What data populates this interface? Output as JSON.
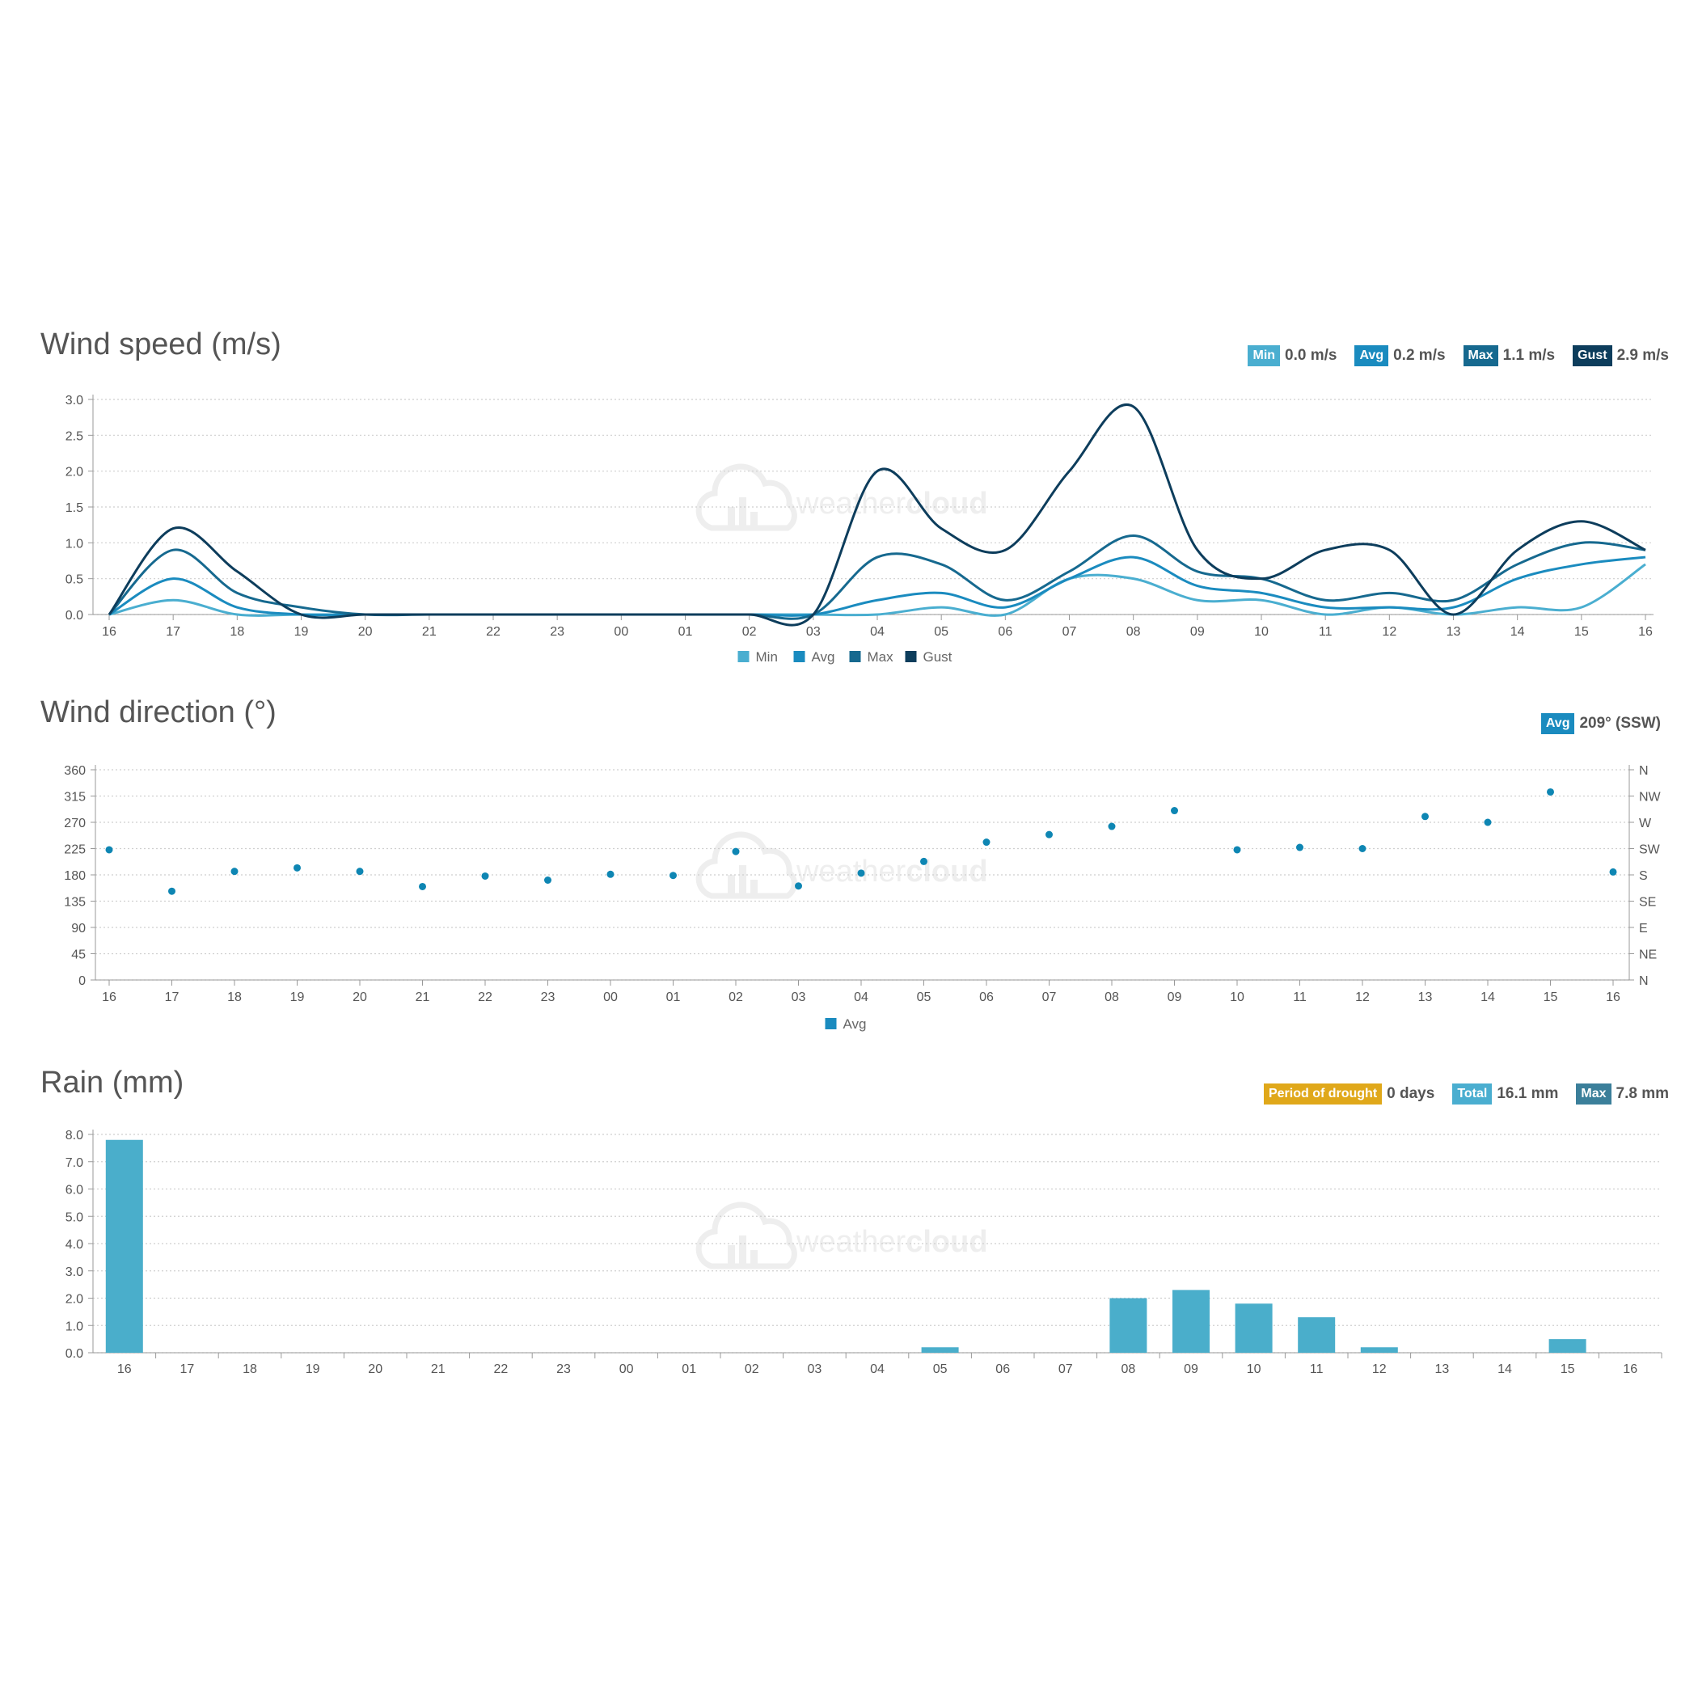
{
  "categories": [
    "16",
    "17",
    "18",
    "19",
    "20",
    "21",
    "22",
    "23",
    "00",
    "01",
    "02",
    "03",
    "04",
    "05",
    "06",
    "07",
    "08",
    "09",
    "10",
    "11",
    "12",
    "13",
    "14",
    "15",
    "16"
  ],
  "watermark": {
    "text_light": "weather",
    "text_bold": "cloud"
  },
  "colors": {
    "min": "#4aaed0",
    "avg": "#1a8bbf",
    "max": "#16698f",
    "gust": "#0d3d5c",
    "drought": "#e0a81a",
    "rain_total": "#4aaed0",
    "rain_max": "#3b7f9a",
    "rain_bar": "#4aaecb",
    "dot": "#0e86b3"
  },
  "wind_speed": {
    "title": "Wind speed (m/s)",
    "stats": [
      {
        "label": "Min",
        "value": "0.0 m/s"
      },
      {
        "label": "Avg",
        "value": "0.2 m/s"
      },
      {
        "label": "Max",
        "value": "1.1 m/s"
      },
      {
        "label": "Gust",
        "value": "2.9 m/s"
      }
    ],
    "legend": [
      "Min",
      "Avg",
      "Max",
      "Gust"
    ]
  },
  "wind_direction": {
    "title": "Wind direction (°)",
    "stats": [
      {
        "label": "Avg",
        "value": "209° (SSW)"
      }
    ],
    "legend": [
      "Avg"
    ]
  },
  "rain": {
    "title": "Rain (mm)",
    "stats": [
      {
        "label": "Period of drought",
        "value": "0 days"
      },
      {
        "label": "Total",
        "value": "16.1 mm"
      },
      {
        "label": "Max",
        "value": "7.8 mm"
      }
    ]
  },
  "chart_data": [
    {
      "type": "line",
      "title": "Wind speed (m/s)",
      "x": [
        "16",
        "17",
        "18",
        "19",
        "20",
        "21",
        "22",
        "23",
        "00",
        "01",
        "02",
        "03",
        "04",
        "05",
        "06",
        "07",
        "08",
        "09",
        "10",
        "11",
        "12",
        "13",
        "14",
        "15",
        "16"
      ],
      "ylim": [
        0,
        3.0
      ],
      "yticks": [
        "0.0",
        "0.5",
        "1.0",
        "1.5",
        "2.0",
        "2.5",
        "3.0"
      ],
      "grid": true,
      "legend_position": "bottom",
      "series": [
        {
          "name": "Min",
          "values": [
            0,
            0.2,
            0,
            0,
            0,
            0,
            0,
            0,
            0,
            0,
            0,
            0,
            0,
            0.1,
            0,
            0.5,
            0.5,
            0.2,
            0.2,
            0,
            0.1,
            0,
            0.1,
            0.1,
            0.7
          ]
        },
        {
          "name": "Avg",
          "values": [
            0,
            0.5,
            0.1,
            0,
            0,
            0,
            0,
            0,
            0,
            0,
            0,
            0,
            0.2,
            0.3,
            0.1,
            0.5,
            0.8,
            0.4,
            0.3,
            0.1,
            0.1,
            0.1,
            0.5,
            0.7,
            0.8
          ]
        },
        {
          "name": "Max",
          "values": [
            0,
            0.9,
            0.3,
            0.1,
            0,
            0,
            0,
            0,
            0,
            0,
            0,
            0,
            0.8,
            0.7,
            0.2,
            0.6,
            1.1,
            0.6,
            0.5,
            0.2,
            0.3,
            0.2,
            0.7,
            1.0,
            0.9
          ]
        },
        {
          "name": "Gust",
          "values": [
            0,
            1.2,
            0.6,
            0,
            0,
            0,
            0,
            0,
            0,
            0,
            0,
            0,
            2.0,
            1.2,
            0.9,
            2.0,
            2.9,
            0.9,
            0.5,
            0.9,
            0.9,
            0,
            0.9,
            1.3,
            0.9
          ]
        }
      ]
    },
    {
      "type": "scatter",
      "title": "Wind direction (°)",
      "x": [
        "16",
        "17",
        "18",
        "19",
        "20",
        "21",
        "22",
        "23",
        "00",
        "01",
        "02",
        "03",
        "04",
        "05",
        "06",
        "07",
        "08",
        "09",
        "10",
        "11",
        "12",
        "13",
        "14",
        "15",
        "16"
      ],
      "ylim": [
        0,
        360
      ],
      "yticks": [
        "0",
        "45",
        "90",
        "135",
        "180",
        "225",
        "270",
        "315",
        "360"
      ],
      "yticks_right": [
        "N",
        "NE",
        "E",
        "SE",
        "S",
        "SW",
        "W",
        "NW",
        "N"
      ],
      "grid": true,
      "legend_position": "bottom",
      "series": [
        {
          "name": "Avg",
          "values": [
            223,
            152,
            186,
            192,
            186,
            160,
            178,
            171,
            181,
            179,
            220,
            161,
            183,
            203,
            236,
            249,
            263,
            290,
            223,
            227,
            225,
            280,
            270,
            322,
            185
          ]
        }
      ]
    },
    {
      "type": "bar",
      "title": "Rain (mm)",
      "categories": [
        "16",
        "17",
        "18",
        "19",
        "20",
        "21",
        "22",
        "23",
        "00",
        "01",
        "02",
        "03",
        "04",
        "05",
        "06",
        "07",
        "08",
        "09",
        "10",
        "11",
        "12",
        "13",
        "14",
        "15",
        "16"
      ],
      "ylim": [
        0,
        8.0
      ],
      "yticks": [
        "0.0",
        "1.0",
        "2.0",
        "3.0",
        "4.0",
        "5.0",
        "6.0",
        "7.0",
        "8.0"
      ],
      "grid": true,
      "values": [
        7.8,
        0,
        0,
        0,
        0,
        0,
        0,
        0,
        0,
        0,
        0,
        0,
        0,
        0.2,
        0,
        0,
        2.0,
        2.3,
        1.8,
        1.3,
        0.2,
        0,
        0,
        0.5,
        0
      ]
    }
  ]
}
